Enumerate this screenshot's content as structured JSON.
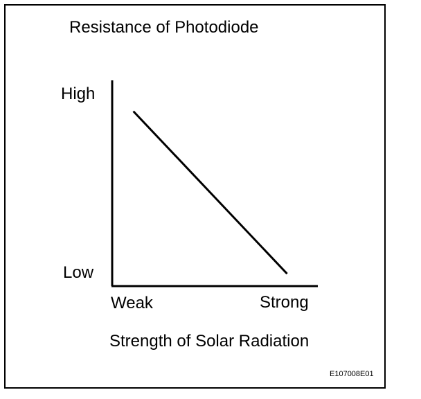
{
  "chart_data": {
    "type": "line",
    "title": "Resistance of Photodiode",
    "xlabel": "Strength of Solar Radiation",
    "ylabel": "",
    "x_tick_labels": [
      "Weak",
      "Strong"
    ],
    "y_tick_labels": [
      "High",
      "Low"
    ],
    "xlim": [
      0,
      1
    ],
    "ylim": [
      0,
      1
    ],
    "grid": false,
    "series": [
      {
        "x": [
          0.1,
          0.85
        ],
        "y": [
          0.85,
          0.06
        ]
      }
    ]
  },
  "figure_code": "E107008E01",
  "colors": {
    "line": "#000000",
    "axis": "#000000",
    "background": "#ffffff"
  }
}
